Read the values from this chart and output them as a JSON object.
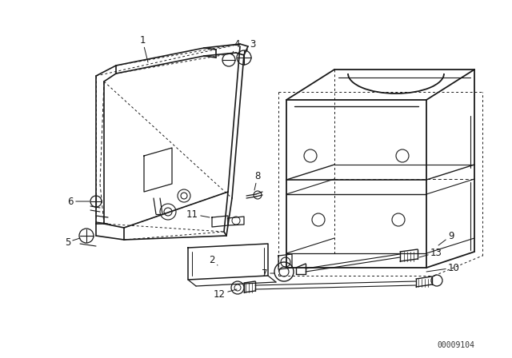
{
  "bg_color": "#ffffff",
  "line_color": "#1a1a1a",
  "fig_width": 6.4,
  "fig_height": 4.48,
  "dpi": 100,
  "watermark": "00009104"
}
